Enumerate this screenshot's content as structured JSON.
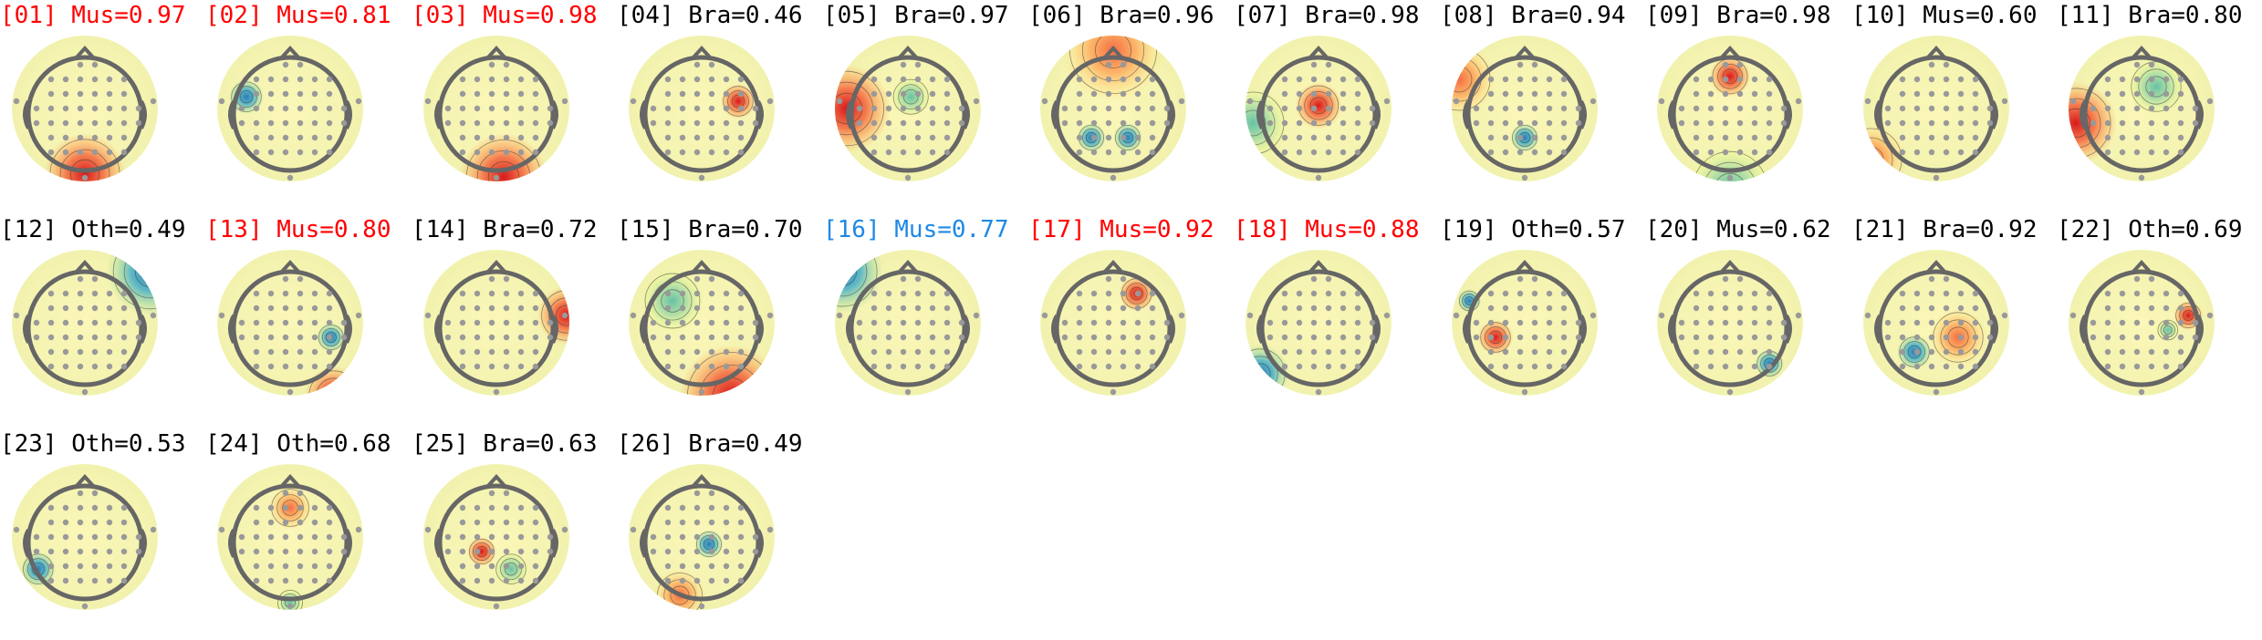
{
  "colors": {
    "title_default": "#000000",
    "title_flag_red": "#ff0000",
    "title_flag_blue": "#1e88e5",
    "head_outline": "#666666",
    "electrode": "#999999",
    "colormap": "RdYlBu_r"
  },
  "components": [
    {
      "label": "[01] Mus=0.97",
      "flag": "red"
    },
    {
      "label": "[02] Mus=0.81",
      "flag": "red"
    },
    {
      "label": "[03] Mus=0.98",
      "flag": "red"
    },
    {
      "label": "[04] Bra=0.46",
      "flag": "none"
    },
    {
      "label": "[05] Bra=0.97",
      "flag": "none"
    },
    {
      "label": "[06] Bra=0.96",
      "flag": "none"
    },
    {
      "label": "[07] Bra=0.98",
      "flag": "none"
    },
    {
      "label": "[08] Bra=0.94",
      "flag": "none"
    },
    {
      "label": "[09] Bra=0.98",
      "flag": "none"
    },
    {
      "label": "[10] Mus=0.60",
      "flag": "none"
    },
    {
      "label": "[11] Bra=0.80",
      "flag": "none"
    },
    {
      "label": "[12] Oth=0.49",
      "flag": "none"
    },
    {
      "label": "[13] Mus=0.80",
      "flag": "red"
    },
    {
      "label": "[14] Bra=0.72",
      "flag": "none"
    },
    {
      "label": "[15] Bra=0.70",
      "flag": "none"
    },
    {
      "label": "[16] Mus=0.77",
      "flag": "blue"
    },
    {
      "label": "[17] Mus=0.92",
      "flag": "red"
    },
    {
      "label": "[18] Mus=0.88",
      "flag": "red"
    },
    {
      "label": "[19] Oth=0.57",
      "flag": "none"
    },
    {
      "label": "[20] Mus=0.62",
      "flag": "none"
    },
    {
      "label": "[21] Bra=0.92",
      "flag": "none"
    },
    {
      "label": "[22] Oth=0.69",
      "flag": "none"
    },
    {
      "label": "[23] Oth=0.53",
      "flag": "none"
    },
    {
      "label": "[24] Oth=0.68",
      "flag": "none"
    },
    {
      "label": "[25] Bra=0.63",
      "flag": "none"
    },
    {
      "label": "[26] Bra=0.49",
      "flag": "none"
    }
  ]
}
